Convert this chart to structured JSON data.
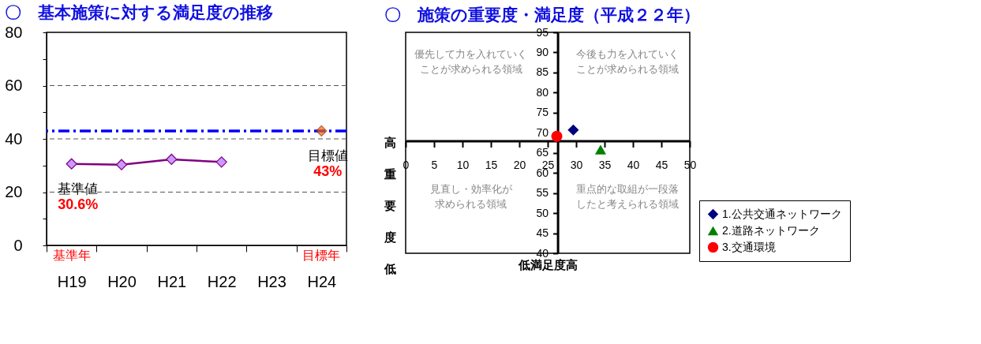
{
  "chart_data": [
    {
      "type": "line",
      "title": "〇　基本施策に対する満足度の推移",
      "categories": [
        "H19",
        "H20",
        "H21",
        "H22",
        "H23",
        "H24"
      ],
      "series": [
        {
          "color": "#800080",
          "values": [
            30.6,
            30.3,
            32.3,
            31.3,
            null,
            null
          ],
          "value_labels": [
            "30.6%",
            null,
            null,
            null,
            null,
            null
          ]
        },
        {
          "type": "scatter",
          "color": "#ff6600",
          "values": [
            null,
            null,
            null,
            null,
            null,
            43
          ],
          "value_labels": [
            null,
            null,
            null,
            null,
            null,
            "43%"
          ]
        }
      ],
      "marker": "diamond",
      "ylim": [
        0,
        80
      ],
      "yticks": [
        0,
        {
          "value": 10,
          "label": null
        },
        20,
        {
          "value": 30,
          "label": null
        },
        40,
        {
          "value": 50,
          "label": null
        },
        60,
        {
          "value": 70,
          "label": null
        },
        80
      ],
      "grid": "y",
      "ref_lines": [
        {
          "axis": "y",
          "value": 43,
          "color": "#0000ff",
          "line_style": "dashed"
        }
      ],
      "annotations": [
        {
          "text": "基準値",
          "x": "H19",
          "y": 30.6
        },
        {
          "text": "目標値",
          "x": "H24",
          "y": 43
        },
        "基準年",
        "目標年"
      ]
    },
    {
      "type": "scatter",
      "title": "〇　施策の重要度・満足度（平成２２年）",
      "xlabel": "低満足度高",
      "ylabel": "高重要度低",
      "series": [
        {
          "name": "1.公共交通ネットワーク",
          "color": "#000080",
          "marker": "diamond",
          "x": [
            29.5
          ],
          "values": [
            70.7
          ]
        },
        {
          "name": "2.道路ネットワーク",
          "color": "#008000",
          "marker": "triangle",
          "x": [
            34.3
          ],
          "values": [
            65.8
          ]
        },
        {
          "name": "3.交通環境",
          "color": "#ff0000",
          "marker": "circle",
          "x": [
            26.6
          ],
          "values": [
            69.1
          ]
        }
      ],
      "xlim": [
        0,
        50
      ],
      "xticks": [
        0,
        5,
        10,
        15,
        20,
        25,
        30,
        35,
        40,
        45,
        50
      ],
      "ylim": [
        40,
        95
      ],
      "yticks": [
        40,
        45,
        50,
        55,
        60,
        65,
        70,
        75,
        80,
        85,
        90,
        95
      ],
      "legend": "bottom right",
      "annotations": [
        "優先して力を入れていくことが求められる領域",
        "今後も力を入れていくことが求められる領域",
        "見直し・効率化が求められる領域",
        "重点的な取組が一段落したと考えられる領域"
      ]
    }
  ]
}
